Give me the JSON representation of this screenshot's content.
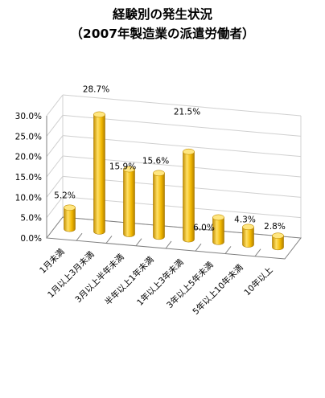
{
  "chart_data": {
    "type": "bar",
    "title": "経験別の発生状況",
    "subtitle": "（2007年製造業の派遣労働者）",
    "categories": [
      "1月未満",
      "1月以上3月未満",
      "3月以上半年未満",
      "半年以上1年未満",
      "1年以上3年未満",
      "3年以上5年未満",
      "5年以上10年未満",
      "10年以上"
    ],
    "values": [
      5.2,
      28.7,
      15.9,
      15.6,
      21.5,
      6.0,
      4.3,
      2.8
    ],
    "data_labels": [
      "5.2%",
      "28.7%",
      "15.9%",
      "15.6%",
      "21.5%",
      "6.0%",
      "4.3%",
      "2.8%"
    ],
    "yticks": [
      "0.0%",
      "5.0%",
      "10.0%",
      "15.0%",
      "20.0%",
      "25.0%",
      "30.0%"
    ],
    "ylim": [
      0,
      30
    ],
    "grid": true,
    "colors": {
      "bar_front": "#f2b800",
      "bar_light": "#ffe066",
      "bar_dark": "#c58f00",
      "bar_top": "#ffe680",
      "grid": "#d0d0d0",
      "axis": "#808080"
    }
  }
}
